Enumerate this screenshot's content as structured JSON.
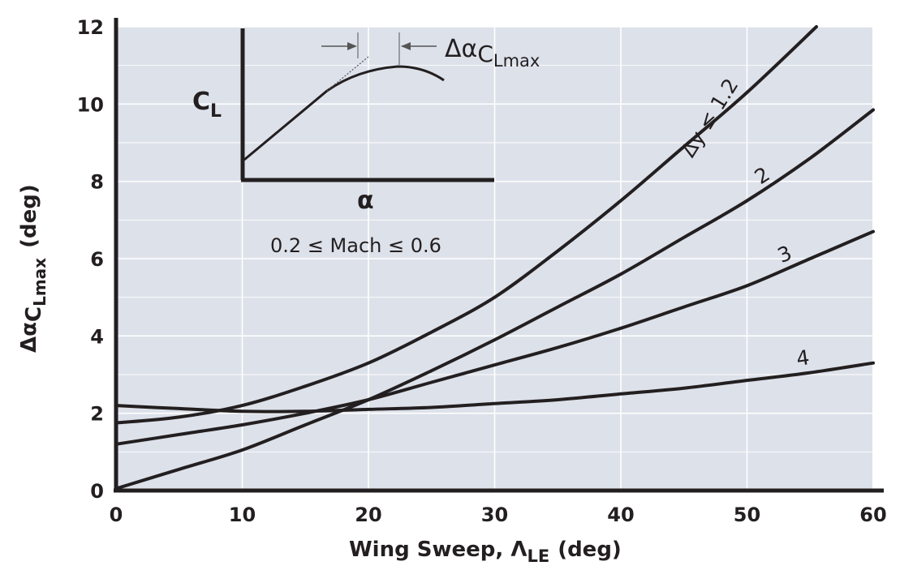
{
  "chart_data": {
    "type": "line",
    "title": "",
    "xlabel": {
      "main": "Wing Sweep, Λ",
      "sub": "LE",
      "unit": "(deg)"
    },
    "ylabel": {
      "main": "Δα",
      "mid": "C",
      "sub": "L",
      "subsub": "max",
      "unit": "(deg)"
    },
    "xlim": [
      0,
      60
    ],
    "ylim": [
      0,
      12
    ],
    "x_ticks": [
      "0",
      "10",
      "20",
      "30",
      "40",
      "50",
      "60"
    ],
    "y_ticks": [
      "0",
      "2",
      "4",
      "6",
      "8",
      "10",
      "12"
    ],
    "grid": true,
    "grid_minor_y": 1,
    "colors": {
      "plot_bg": "#dde1ea",
      "grid": "#ffffff",
      "line": "#231f20"
    },
    "annotation": "0.2 ≤ Mach ≤ 0.6",
    "series": [
      {
        "name": "Δy ≤ 1.2",
        "x": [
          0,
          5,
          10,
          15,
          20,
          25,
          30,
          35,
          40,
          45,
          50,
          55.5
        ],
        "y": [
          1.75,
          1.9,
          2.2,
          2.7,
          3.3,
          4.1,
          5.0,
          6.2,
          7.5,
          8.9,
          10.3,
          12.0
        ]
      },
      {
        "name": "2",
        "x": [
          0,
          5,
          10,
          15,
          20,
          25,
          30,
          35,
          40,
          45,
          50,
          55,
          60
        ],
        "y": [
          0.05,
          0.55,
          1.05,
          1.7,
          2.35,
          3.1,
          3.9,
          4.75,
          5.6,
          6.55,
          7.5,
          8.6,
          9.85
        ]
      },
      {
        "name": "3",
        "x": [
          0,
          5,
          10,
          15,
          20,
          25,
          30,
          35,
          40,
          45,
          50,
          55,
          60
        ],
        "y": [
          1.2,
          1.45,
          1.7,
          2.0,
          2.35,
          2.8,
          3.25,
          3.7,
          4.2,
          4.75,
          5.3,
          6.0,
          6.7
        ]
      },
      {
        "name": "4",
        "x": [
          0,
          5,
          10,
          15,
          20,
          25,
          30,
          35,
          40,
          45,
          50,
          55,
          60
        ],
        "y": [
          2.2,
          2.12,
          2.05,
          2.05,
          2.1,
          2.15,
          2.25,
          2.35,
          2.5,
          2.65,
          2.85,
          3.05,
          3.3
        ]
      }
    ],
    "curve_labels": [
      {
        "text": "Δy ≤ 1.2",
        "x": 47.5,
        "y": 9.55
      },
      {
        "text": "2",
        "x": 51.5,
        "y": 8.0
      },
      {
        "text": "3",
        "x": 53.2,
        "y": 5.95
      },
      {
        "text": "4",
        "x": 54.5,
        "y": 3.25
      }
    ],
    "inset": {
      "ylabel": {
        "main": "C",
        "sub": "L"
      },
      "xlabel": "α",
      "delta_label": {
        "main": "Δα",
        "mid": "C",
        "sub": "L",
        "subsub": "max"
      }
    }
  }
}
